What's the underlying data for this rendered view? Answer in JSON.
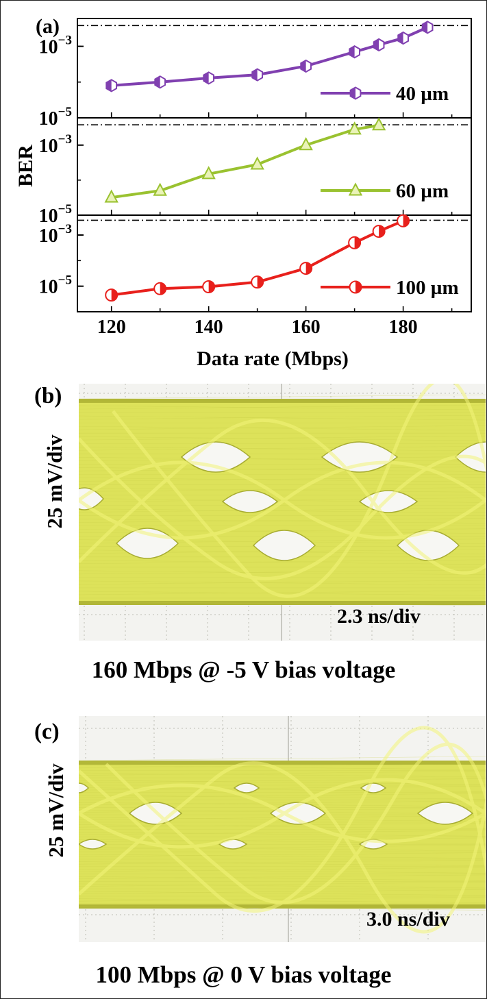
{
  "chart_data": [
    {
      "type": "line",
      "panel_label": "(a)",
      "xlabel": "Data rate (Mbps)",
      "ylabel": "BER",
      "xlim": [
        113,
        194
      ],
      "x_ticks": [
        "120",
        "140",
        "160",
        "180"
      ],
      "y_scale": "log",
      "threshold_line": "dash-dot",
      "subplots": [
        {
          "series": [
            {
              "name": "40 µm",
              "color": "#8040b0",
              "marker": "half-filled-hexagon",
              "x": [
                120,
                130,
                140,
                150,
                160,
                170,
                175,
                180,
                185
              ],
              "y": [
                8e-05,
                0.0001,
                0.00013,
                0.00016,
                0.00028,
                0.0007,
                0.0011,
                0.0017,
                0.0034
              ]
            }
          ],
          "ylim": [
            1e-05,
            0.006
          ],
          "y_ticks": [
            "10-5",
            "10-3"
          ],
          "threshold": 0.0038,
          "legend_position": "lower-right"
        },
        {
          "series": [
            {
              "name": "60 µm",
              "color": "#9ac230",
              "marker": "triangle",
              "x": [
                120,
                130,
                140,
                150,
                160,
                170,
                175
              ],
              "y": [
                3.2e-05,
                5e-05,
                0.00015,
                0.00028,
                0.001,
                0.0028,
                0.0037
              ]
            }
          ],
          "ylim": [
            1e-05,
            0.006
          ],
          "y_ticks": [
            "10-5",
            "10-3"
          ],
          "threshold": 0.0038,
          "legend_position": "lower-right"
        },
        {
          "series": [
            {
              "name": "100 µm",
              "color": "#e8201c",
              "marker": "half-filled-circle",
              "x": [
                120,
                130,
                140,
                150,
                160,
                170,
                175,
                180
              ],
              "y": [
                4.5e-06,
                8e-06,
                9.5e-06,
                1.45e-05,
                5e-05,
                0.0005,
                0.0014,
                0.0036
              ]
            }
          ],
          "ylim": [
            1e-06,
            0.006
          ],
          "y_ticks": [
            "10-5",
            "10-3"
          ],
          "threshold": 0.0038,
          "legend_position": "lower-right"
        }
      ]
    },
    {
      "type": "other",
      "panel_label": "(b)",
      "ylabel": "25 mV/div",
      "time_scale": "2.3 ns/div",
      "caption": "160 Mbps @ -5 V bias voltage",
      "trace_color": "#dde25a"
    },
    {
      "type": "other",
      "panel_label": "(c)",
      "ylabel": "25 mV/div",
      "time_scale": "3.0 ns/div",
      "caption": "100 Mbps @ 0 V bias voltage",
      "trace_color": "#dde25a"
    }
  ]
}
